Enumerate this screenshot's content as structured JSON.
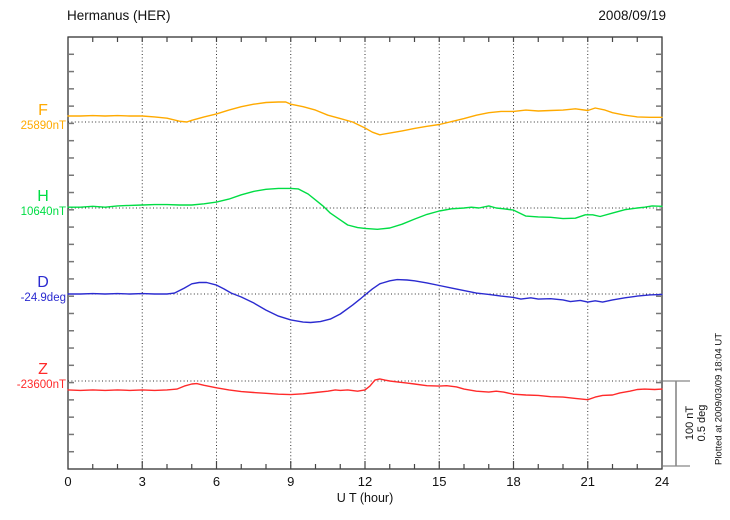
{
  "header": {
    "title": "Hermanus (HER)",
    "date": "2008/09/19"
  },
  "x_axis": {
    "label": "U T (hour)",
    "tick_labels": [
      "0",
      "3",
      "6",
      "9",
      "12",
      "15",
      "18",
      "21",
      "24"
    ]
  },
  "scale_bar": {
    "line1": "100 nT",
    "line2": "0.5 deg",
    "color": "#888888"
  },
  "footer_note": "Plotted at 2009/03/09 18:04 UT",
  "channels": [
    {
      "id": "F",
      "label": "F",
      "value": "25890nT",
      "color": "#ffaa00"
    },
    {
      "id": "H",
      "label": "H",
      "value": "10640nT",
      "color": "#00dd44"
    },
    {
      "id": "D",
      "label": "D",
      "value": "-24.9deg",
      "color": "#2b2bd0"
    },
    {
      "id": "Z",
      "label": "Z",
      "value": "-23600nT",
      "color": "#ff2a2a"
    }
  ],
  "chart_data": {
    "type": "line",
    "title": "Hermanus (HER) magnetogram",
    "date": "2008/09/19",
    "xlabel": "U T (hour)",
    "x_range": [
      0,
      24
    ],
    "x_major_tick": 3,
    "x_minor_tick": 1,
    "grid": "dotted vertical lines every 3 h; dotted horizontal baseline per channel",
    "legend_position": "left margin channel labels",
    "scale": {
      "bar_value": 100,
      "bar_label": "100 nT / 0.5 deg",
      "note": "values are offsets from channel baseline in bar units (100 = bar height)"
    },
    "series": [
      {
        "name": "F",
        "baseline": "25890nT",
        "unit": "nT",
        "color": "#ffaa00",
        "points": [
          [
            0,
            7
          ],
          [
            0.5,
            7
          ],
          [
            1,
            7.5
          ],
          [
            1.5,
            7
          ],
          [
            2,
            7.5
          ],
          [
            2.5,
            7
          ],
          [
            3,
            7
          ],
          [
            3.5,
            6
          ],
          [
            4,
            4.5
          ],
          [
            4.5,
            1
          ],
          [
            4.8,
            0
          ],
          [
            5,
            2
          ],
          [
            5.5,
            6
          ],
          [
            6,
            9.5
          ],
          [
            6.5,
            14
          ],
          [
            7,
            18
          ],
          [
            7.5,
            21
          ],
          [
            8,
            23
          ],
          [
            8.5,
            23.5
          ],
          [
            8.8,
            23.5
          ],
          [
            9,
            21
          ],
          [
            9.5,
            18
          ],
          [
            10,
            14
          ],
          [
            10.5,
            8
          ],
          [
            11,
            4
          ],
          [
            11.5,
            0
          ],
          [
            12,
            -7
          ],
          [
            12.3,
            -12
          ],
          [
            12.6,
            -15
          ],
          [
            13,
            -13
          ],
          [
            13.5,
            -10.5
          ],
          [
            14,
            -7.5
          ],
          [
            14.5,
            -5
          ],
          [
            15,
            -3
          ],
          [
            15.5,
            0.5
          ],
          [
            16,
            4
          ],
          [
            16.5,
            8
          ],
          [
            17,
            11
          ],
          [
            17.5,
            12.5
          ],
          [
            18,
            12.5
          ],
          [
            18.5,
            14
          ],
          [
            19,
            13
          ],
          [
            19.5,
            13.5
          ],
          [
            20,
            14
          ],
          [
            20.5,
            15.5
          ],
          [
            21,
            13.5
          ],
          [
            21.3,
            16.5
          ],
          [
            21.7,
            14
          ],
          [
            22,
            11
          ],
          [
            22.5,
            8
          ],
          [
            23,
            6
          ],
          [
            23.5,
            5.5
          ],
          [
            24,
            5.5
          ]
        ]
      },
      {
        "name": "H",
        "baseline": "10640nT",
        "unit": "nT",
        "color": "#00dd44",
        "points": [
          [
            0,
            1
          ],
          [
            0.5,
            1
          ],
          [
            1,
            2
          ],
          [
            1.5,
            1
          ],
          [
            2,
            2.5
          ],
          [
            2.5,
            3
          ],
          [
            3,
            3.5
          ],
          [
            3.5,
            4
          ],
          [
            4,
            4
          ],
          [
            4.5,
            3.5
          ],
          [
            5,
            3.5
          ],
          [
            5.5,
            5
          ],
          [
            6,
            7
          ],
          [
            6.5,
            10.5
          ],
          [
            7,
            15.5
          ],
          [
            7.5,
            19.5
          ],
          [
            8,
            22
          ],
          [
            8.5,
            23
          ],
          [
            9,
            23
          ],
          [
            9.3,
            22.5
          ],
          [
            9.7,
            16.5
          ],
          [
            10,
            9.5
          ],
          [
            10.3,
            2.5
          ],
          [
            10.6,
            -6
          ],
          [
            11,
            -14
          ],
          [
            11.3,
            -20
          ],
          [
            11.7,
            -23
          ],
          [
            12,
            -24
          ],
          [
            12.5,
            -25
          ],
          [
            13,
            -23.5
          ],
          [
            13.5,
            -19
          ],
          [
            14,
            -13
          ],
          [
            14.5,
            -7.5
          ],
          [
            15,
            -3.5
          ],
          [
            15.5,
            -1
          ],
          [
            16,
            0
          ],
          [
            16.3,
            1
          ],
          [
            16.6,
            0
          ],
          [
            17,
            2.5
          ],
          [
            17.3,
            0
          ],
          [
            17.6,
            -1
          ],
          [
            18,
            -2.5
          ],
          [
            18.5,
            -9.5
          ],
          [
            19,
            -10.5
          ],
          [
            19.5,
            -11
          ],
          [
            20,
            -12.5
          ],
          [
            20.5,
            -12
          ],
          [
            20.9,
            -8
          ],
          [
            21.2,
            -8
          ],
          [
            21.5,
            -10
          ],
          [
            22,
            -6
          ],
          [
            22.5,
            -2
          ],
          [
            23,
            0
          ],
          [
            23.3,
            1
          ],
          [
            23.6,
            2.5
          ],
          [
            24,
            2
          ]
        ]
      },
      {
        "name": "D",
        "baseline": "-24.9deg",
        "unit": "deg (0.5 deg = bar)",
        "color": "#2b2bd0",
        "points": [
          [
            0,
            0
          ],
          [
            0.5,
            0
          ],
          [
            1,
            0.5
          ],
          [
            1.5,
            0
          ],
          [
            2,
            0.5
          ],
          [
            2.5,
            0
          ],
          [
            3,
            0.5
          ],
          [
            3.5,
            0
          ],
          [
            4,
            0
          ],
          [
            4.3,
            1
          ],
          [
            4.7,
            7
          ],
          [
            5,
            12
          ],
          [
            5.3,
            13.5
          ],
          [
            5.6,
            13.5
          ],
          [
            6,
            10.5
          ],
          [
            6.3,
            6
          ],
          [
            6.6,
            1
          ],
          [
            7,
            -3.5
          ],
          [
            7.5,
            -10.5
          ],
          [
            8,
            -19
          ],
          [
            8.5,
            -26
          ],
          [
            9,
            -30.5
          ],
          [
            9.5,
            -33
          ],
          [
            9.8,
            -33.5
          ],
          [
            10.2,
            -32.5
          ],
          [
            10.6,
            -29.5
          ],
          [
            11,
            -23.5
          ],
          [
            11.5,
            -13
          ],
          [
            11.8,
            -6
          ],
          [
            12,
            -1
          ],
          [
            12.3,
            6
          ],
          [
            12.6,
            12
          ],
          [
            13,
            15.5
          ],
          [
            13.3,
            17
          ],
          [
            13.7,
            16.5
          ],
          [
            14,
            15.5
          ],
          [
            14.5,
            13
          ],
          [
            15,
            10
          ],
          [
            15.5,
            7
          ],
          [
            16,
            4
          ],
          [
            16.5,
            1
          ],
          [
            17,
            -0.5
          ],
          [
            17.5,
            -2.5
          ],
          [
            18,
            -4
          ],
          [
            18.3,
            -6
          ],
          [
            18.7,
            -4.5
          ],
          [
            19,
            -6
          ],
          [
            19.5,
            -5.5
          ],
          [
            20,
            -7
          ],
          [
            20.3,
            -9
          ],
          [
            20.7,
            -7.5
          ],
          [
            21,
            -9.5
          ],
          [
            21.3,
            -8
          ],
          [
            21.6,
            -9.5
          ],
          [
            22,
            -7
          ],
          [
            22.5,
            -4.5
          ],
          [
            23,
            -2.5
          ],
          [
            23.5,
            -1
          ],
          [
            24,
            -0.5
          ]
        ]
      },
      {
        "name": "Z",
        "baseline": "-23600nT",
        "unit": "nT",
        "color": "#ff2a2a",
        "points": [
          [
            0,
            -10.5
          ],
          [
            0.5,
            -11
          ],
          [
            1,
            -10.5
          ],
          [
            1.5,
            -11
          ],
          [
            2,
            -10.5
          ],
          [
            2.5,
            -11
          ],
          [
            3,
            -10.5
          ],
          [
            3.5,
            -11
          ],
          [
            4,
            -10.5
          ],
          [
            4.4,
            -9.5
          ],
          [
            4.7,
            -6
          ],
          [
            5,
            -3.5
          ],
          [
            5.2,
            -3
          ],
          [
            5.5,
            -5
          ],
          [
            6,
            -8
          ],
          [
            6.5,
            -10.5
          ],
          [
            7,
            -12.5
          ],
          [
            7.5,
            -13.5
          ],
          [
            8,
            -14.5
          ],
          [
            8.5,
            -15.5
          ],
          [
            9,
            -16
          ],
          [
            9.5,
            -15
          ],
          [
            10,
            -13.5
          ],
          [
            10.5,
            -12
          ],
          [
            10.8,
            -10.5
          ],
          [
            11,
            -11
          ],
          [
            11.3,
            -10.5
          ],
          [
            11.7,
            -12
          ],
          [
            12,
            -10.5
          ],
          [
            12.2,
            -6
          ],
          [
            12.4,
            1
          ],
          [
            12.6,
            2.5
          ],
          [
            12.8,
            1
          ],
          [
            13,
            0
          ],
          [
            13.3,
            -1
          ],
          [
            13.7,
            -2.5
          ],
          [
            14,
            -3.5
          ],
          [
            14.5,
            -5.5
          ],
          [
            15,
            -6
          ],
          [
            15.3,
            -5.5
          ],
          [
            15.7,
            -7
          ],
          [
            16,
            -9.5
          ],
          [
            16.5,
            -12
          ],
          [
            17,
            -13
          ],
          [
            17.3,
            -12
          ],
          [
            17.6,
            -13
          ],
          [
            18,
            -15.5
          ],
          [
            18.5,
            -16.5
          ],
          [
            19,
            -17
          ],
          [
            19.5,
            -18.5
          ],
          [
            20,
            -19
          ],
          [
            20.5,
            -20.5
          ],
          [
            21,
            -22
          ],
          [
            21.3,
            -19
          ],
          [
            21.6,
            -17
          ],
          [
            22,
            -16.5
          ],
          [
            22.3,
            -14
          ],
          [
            22.7,
            -12
          ],
          [
            23,
            -10
          ],
          [
            23.3,
            -9.5
          ],
          [
            23.7,
            -10
          ],
          [
            24,
            -9.5
          ]
        ]
      }
    ]
  }
}
